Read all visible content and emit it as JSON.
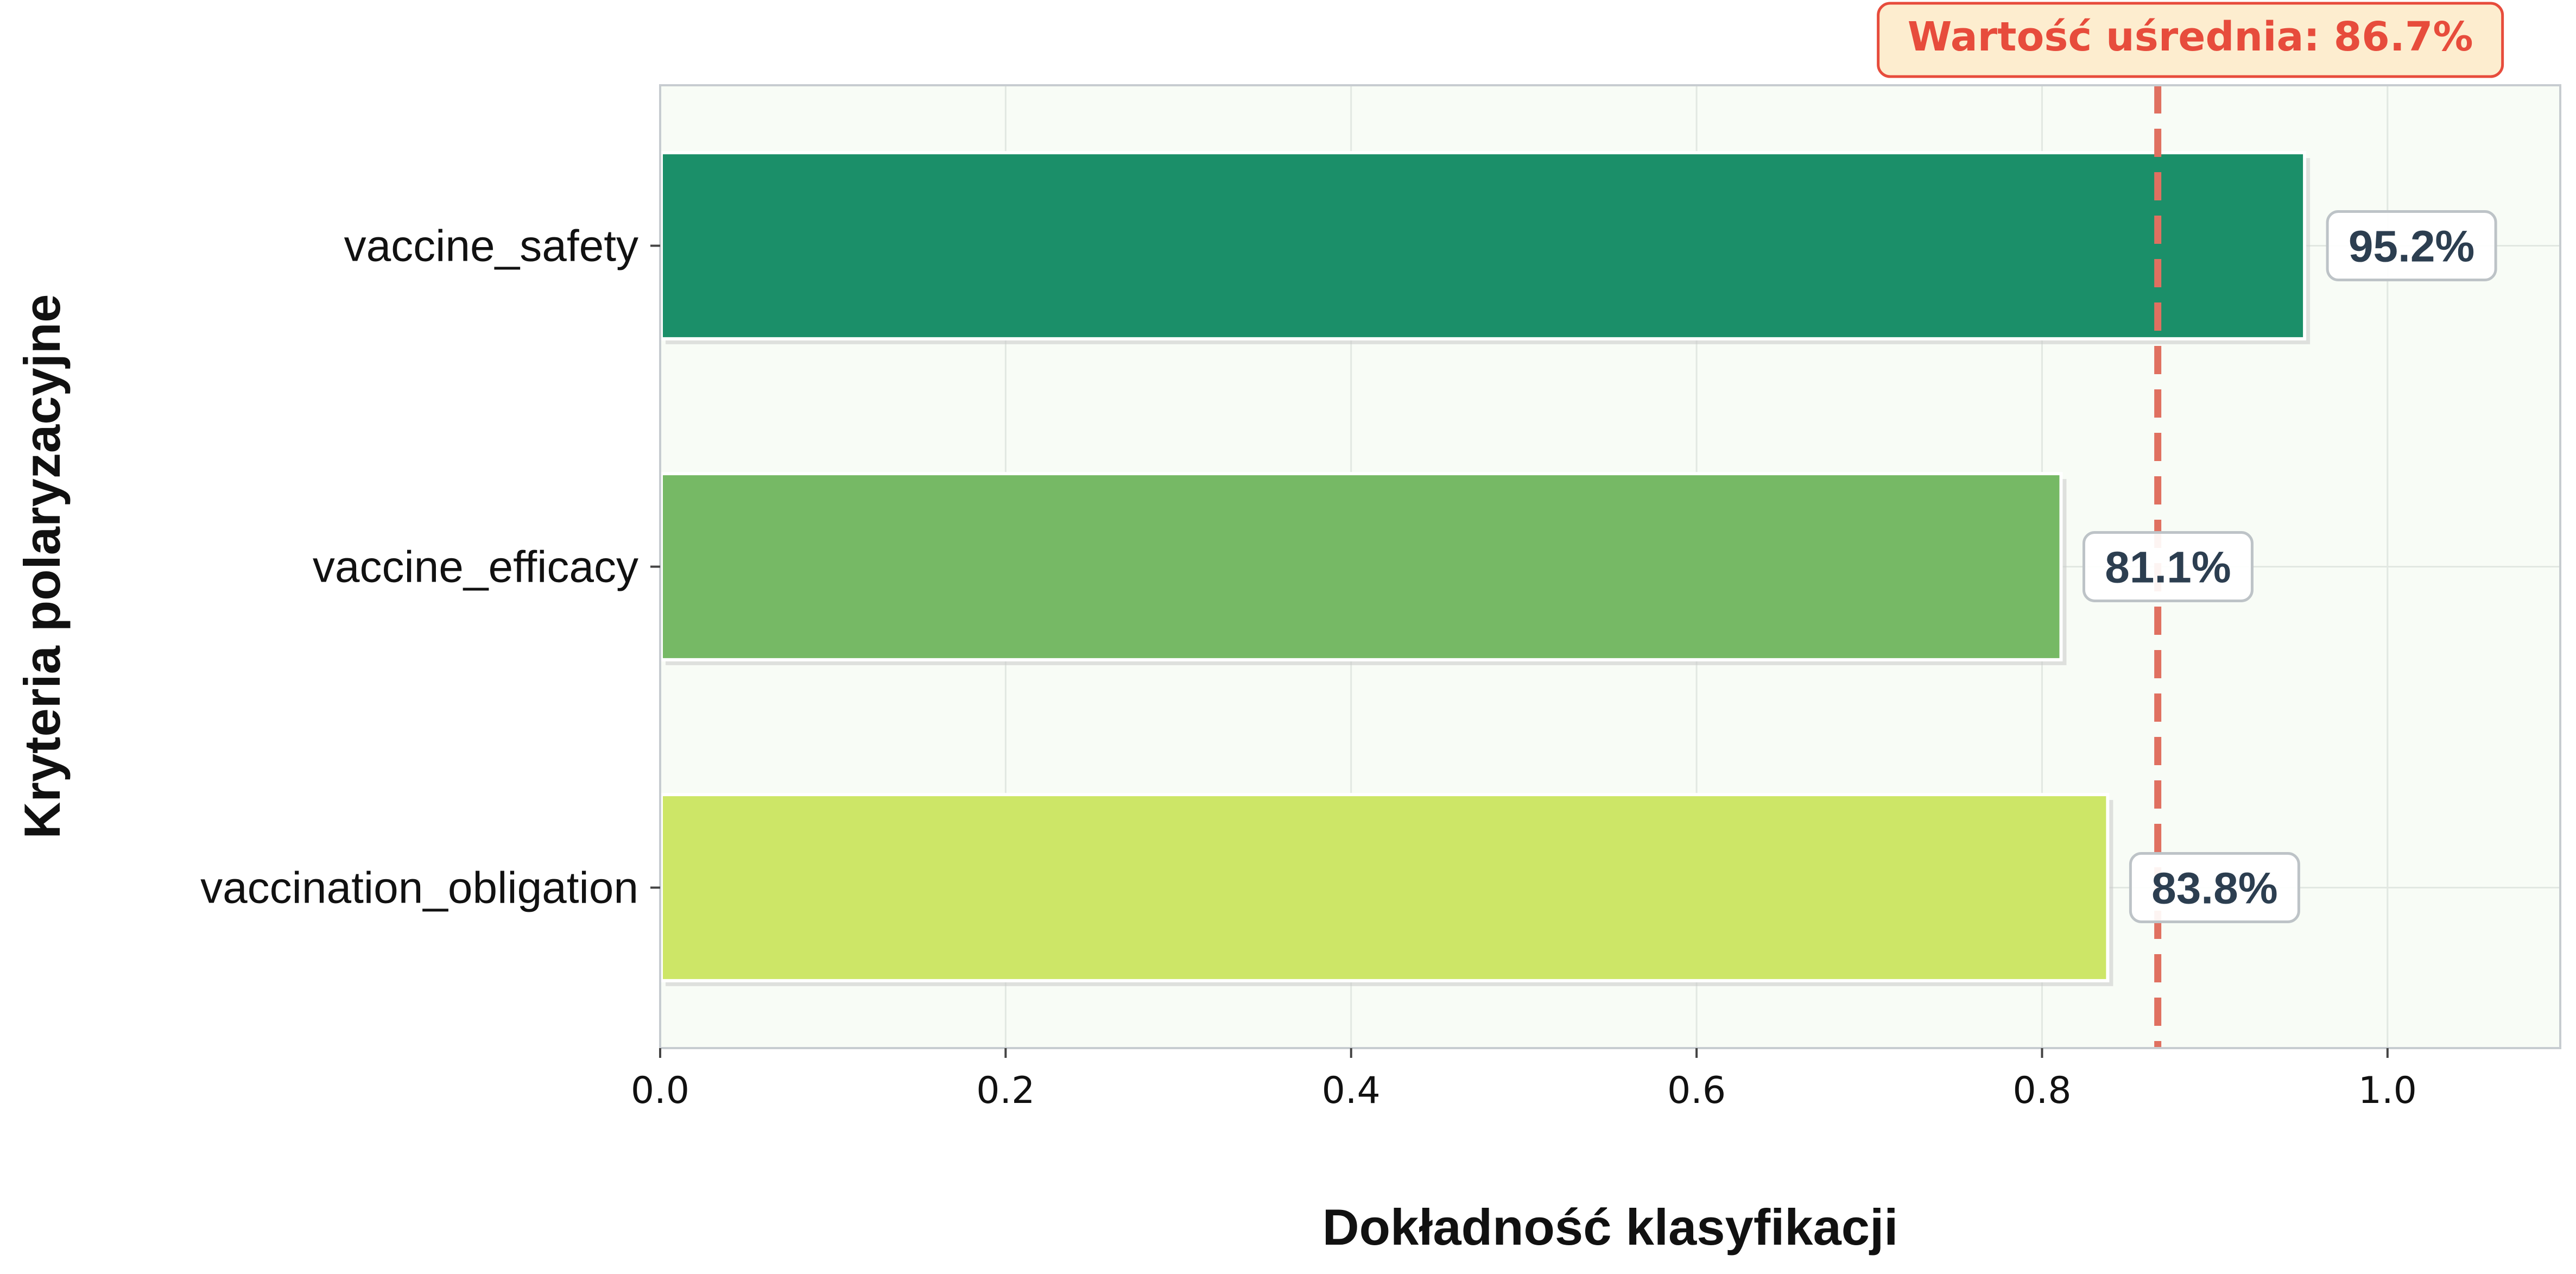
{
  "chart_data": {
    "type": "bar",
    "orientation": "horizontal",
    "categories": [
      "vaccine_safety",
      "vaccine_efficacy",
      "vaccination_obligation"
    ],
    "values": [
      0.952,
      0.811,
      0.838
    ],
    "value_labels": [
      "95.2%",
      "81.1%",
      "83.8%"
    ],
    "colors": [
      "#1b8f69",
      "#76b965",
      "#cde667"
    ],
    "xlabel": "Dokładność klasyfikacji",
    "ylabel": "Kryteria polaryzacyjne",
    "xlim": [
      0.0,
      1.1
    ],
    "xticks": [
      0.0,
      0.2,
      0.4,
      0.6,
      0.8,
      1.0
    ],
    "xtick_labels": [
      "0.0",
      "0.2",
      "0.4",
      "0.6",
      "0.8",
      "1.0"
    ],
    "grid": true,
    "mean_line": {
      "value": 0.867,
      "label": "Wartość uśrednia: 86.7%",
      "color": "#e07060"
    },
    "plot_background": "#f8fcf6"
  }
}
